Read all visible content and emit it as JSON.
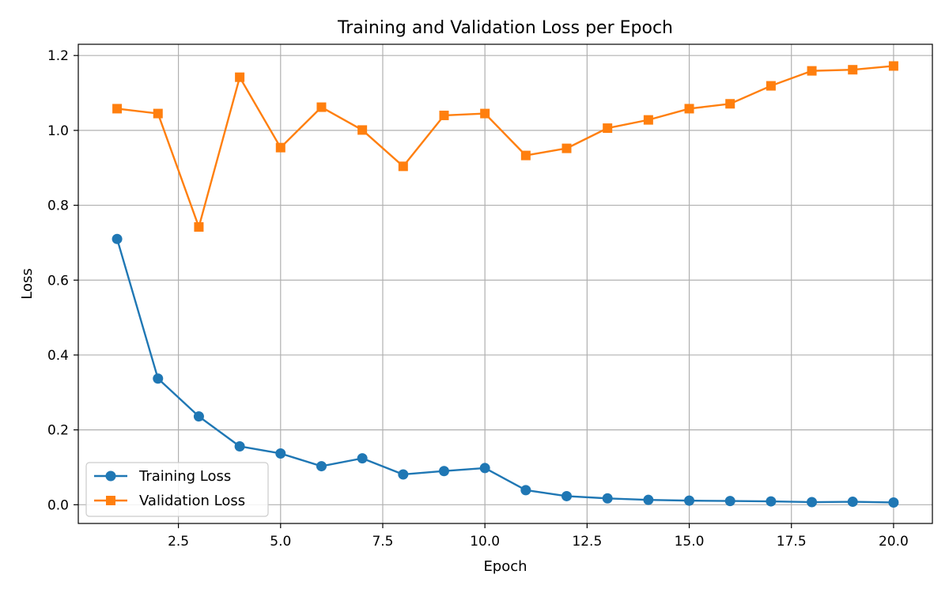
{
  "chart_data": {
    "type": "line",
    "title": "Training and Validation Loss per Epoch",
    "xlabel": "Epoch",
    "ylabel": "Loss",
    "xlim": [
      0.05,
      20.95
    ],
    "ylim": [
      -0.05,
      1.23
    ],
    "xticks": [
      2.5,
      5.0,
      7.5,
      10.0,
      12.5,
      15.0,
      17.5,
      20.0
    ],
    "xtick_labels": [
      "2.5",
      "5.0",
      "7.5",
      "10.0",
      "12.5",
      "15.0",
      "17.5",
      "20.0"
    ],
    "yticks": [
      0.0,
      0.2,
      0.4,
      0.6,
      0.8,
      1.0,
      1.2
    ],
    "ytick_labels": [
      "0.0",
      "0.2",
      "0.4",
      "0.6",
      "0.8",
      "1.0",
      "1.2"
    ],
    "grid": true,
    "legend_position": "lower-left",
    "x": [
      1,
      2,
      3,
      4,
      5,
      6,
      7,
      8,
      9,
      10,
      11,
      12,
      13,
      14,
      15,
      16,
      17,
      18,
      19,
      20
    ],
    "series": [
      {
        "name": "Training Loss",
        "color": "#1f77b4",
        "marker": "circle",
        "values": [
          0.71,
          0.337,
          0.236,
          0.156,
          0.137,
          0.103,
          0.124,
          0.081,
          0.09,
          0.098,
          0.039,
          0.023,
          0.017,
          0.013,
          0.011,
          0.01,
          0.009,
          0.007,
          0.008,
          0.006
        ]
      },
      {
        "name": "Validation Loss",
        "color": "#ff7f0e",
        "marker": "square",
        "values": [
          1.058,
          1.045,
          0.742,
          1.142,
          0.954,
          1.062,
          1.001,
          0.904,
          1.04,
          1.045,
          0.933,
          0.952,
          1.006,
          1.028,
          1.058,
          1.071,
          1.119,
          1.159,
          1.162,
          1.172
        ]
      }
    ]
  }
}
